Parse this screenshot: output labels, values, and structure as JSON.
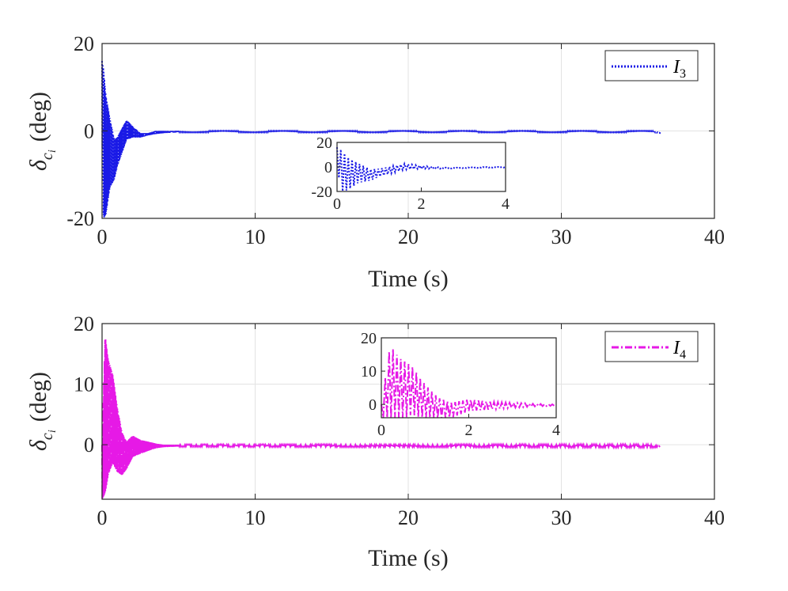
{
  "chart_data": [
    {
      "type": "line",
      "panel": "top",
      "xlabel": "Time (s)",
      "ylabel": "δ",
      "ylabel_sub": "c",
      "ylabel_subsub": "i",
      "ylabel_unit": "(deg)",
      "xlim": [
        0,
        40
      ],
      "ylim": [
        -20,
        20
      ],
      "xticks": [
        0,
        10,
        20,
        30,
        40
      ],
      "yticks": [
        -20,
        0,
        20
      ],
      "xtick_labels": [
        "0",
        "10",
        "20",
        "30",
        "40"
      ],
      "ytick_labels": [
        "-20",
        "0",
        "20"
      ],
      "grid": true,
      "legend": {
        "label": "I",
        "sub": "3",
        "placement": "top-right"
      },
      "color": "#1a1ae6",
      "line_style": "dotted",
      "series": [
        {
          "name": "I3",
          "envelope_upper": [
            [
              0.0,
              16.0
            ],
            [
              0.1,
              14.0
            ],
            [
              0.25,
              8.0
            ],
            [
              0.5,
              3.0
            ],
            [
              0.8,
              -2.0
            ],
            [
              1.0,
              -1.5
            ],
            [
              1.3,
              0.5
            ],
            [
              1.6,
              2.5
            ],
            [
              2.0,
              1.0
            ],
            [
              2.5,
              -0.5
            ],
            [
              3.0,
              -0.5
            ],
            [
              3.5,
              0.0
            ],
            [
              4.0,
              0.0
            ],
            [
              5.0,
              0.0
            ],
            [
              36.0,
              0.0
            ],
            [
              36.5,
              -0.5
            ]
          ],
          "envelope_lower": [
            [
              0.0,
              0.0
            ],
            [
              0.1,
              -20.0
            ],
            [
              0.25,
              -19.0
            ],
            [
              0.5,
              -13.0
            ],
            [
              0.8,
              -11.0
            ],
            [
              1.0,
              -8.0
            ],
            [
              1.3,
              -5.0
            ],
            [
              1.6,
              -2.0
            ],
            [
              2.0,
              -1.5
            ],
            [
              2.5,
              -1.5
            ],
            [
              3.0,
              -1.0
            ],
            [
              3.5,
              -0.7
            ],
            [
              4.0,
              -0.5
            ],
            [
              5.0,
              -0.3
            ],
            [
              36.0,
              -0.3
            ],
            [
              36.5,
              -0.5
            ]
          ],
          "end_time": 36.5
        }
      ],
      "inset": {
        "xlim": [
          0,
          4
        ],
        "ylim": [
          -20,
          20
        ],
        "xticks": [
          0,
          2,
          4
        ],
        "yticks": [
          -20,
          0,
          20
        ],
        "xtick_labels": [
          "0",
          "2",
          "4"
        ],
        "ytick_labels": [
          "-20",
          "0",
          "20"
        ]
      }
    },
    {
      "type": "line",
      "panel": "bottom",
      "xlabel": "Time (s)",
      "ylabel": "δ",
      "ylabel_sub": "c",
      "ylabel_subsub": "i",
      "ylabel_unit": "(deg)",
      "xlim": [
        0,
        40
      ],
      "ylim": [
        -9,
        20
      ],
      "xticks": [
        0,
        10,
        20,
        30,
        40
      ],
      "yticks": [
        0,
        10,
        20
      ],
      "xtick_labels": [
        "0",
        "10",
        "20",
        "30",
        "40"
      ],
      "ytick_labels": [
        "0",
        "10",
        "20"
      ],
      "grid": true,
      "legend": {
        "label": "I",
        "sub": "4",
        "placement": "top-right"
      },
      "color": "#e619e6",
      "line_style": "dashdot",
      "series": [
        {
          "name": "I4",
          "envelope_upper": [
            [
              0.0,
              0.0
            ],
            [
              0.2,
              18.0
            ],
            [
              0.4,
              14.0
            ],
            [
              0.7,
              11.5
            ],
            [
              1.0,
              6.0
            ],
            [
              1.3,
              2.0
            ],
            [
              1.6,
              0.5
            ],
            [
              2.0,
              1.5
            ],
            [
              2.5,
              0.8
            ],
            [
              3.0,
              0.5
            ],
            [
              3.5,
              0.2
            ],
            [
              4.0,
              0.0
            ],
            [
              5.0,
              0.0
            ],
            [
              36.0,
              0.0
            ],
            [
              36.5,
              -0.3
            ]
          ],
          "envelope_lower": [
            [
              0.0,
              -9.0
            ],
            [
              0.2,
              -8.0
            ],
            [
              0.4,
              -5.0
            ],
            [
              0.7,
              -3.0
            ],
            [
              1.0,
              -4.5
            ],
            [
              1.3,
              -5.0
            ],
            [
              1.6,
              -4.0
            ],
            [
              2.0,
              -2.0
            ],
            [
              2.5,
              -1.5
            ],
            [
              3.0,
              -1.0
            ],
            [
              3.5,
              -0.6
            ],
            [
              4.0,
              -0.4
            ],
            [
              5.0,
              -0.3
            ],
            [
              36.0,
              -0.4
            ],
            [
              36.5,
              -0.4
            ]
          ],
          "end_time": 36.5
        }
      ],
      "inset": {
        "xlim": [
          0,
          4
        ],
        "ylim": [
          -4,
          20
        ],
        "xticks": [
          0,
          2,
          4
        ],
        "yticks": [
          0,
          10,
          20
        ],
        "xtick_labels": [
          "0",
          "2",
          "4"
        ],
        "ytick_labels": [
          "0",
          "10",
          "20"
        ]
      }
    }
  ]
}
